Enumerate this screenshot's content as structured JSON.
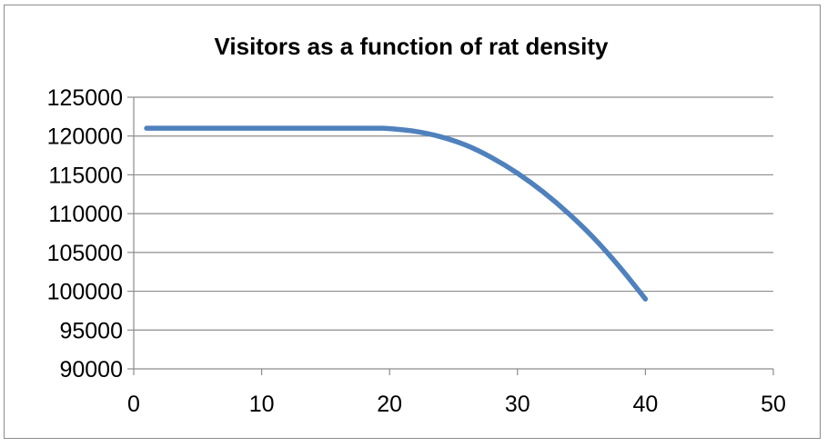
{
  "chart_data": {
    "type": "line",
    "title": "Visitors as a function of rat density",
    "xlabel": "",
    "ylabel": "",
    "xlim": [
      0,
      50
    ],
    "ylim": [
      90000,
      125000
    ],
    "x_ticks": [
      "0",
      "10",
      "20",
      "30",
      "40",
      "50"
    ],
    "y_ticks": [
      "125000",
      "120000",
      "115000",
      "110000",
      "105000",
      "100000",
      "95000",
      "90000"
    ],
    "grid": "horizontal",
    "legend": "none",
    "series": [
      {
        "color": "#4f81bd",
        "x": [
          1,
          5,
          10,
          15,
          19,
          20,
          22,
          24,
          26,
          28,
          30,
          32,
          34,
          36,
          38,
          40
        ],
        "y": [
          121000,
          121000,
          121000,
          121000,
          121000,
          120950,
          120600,
          119900,
          118800,
          117200,
          115200,
          112800,
          110000,
          106800,
          103100,
          99000
        ]
      }
    ]
  }
}
